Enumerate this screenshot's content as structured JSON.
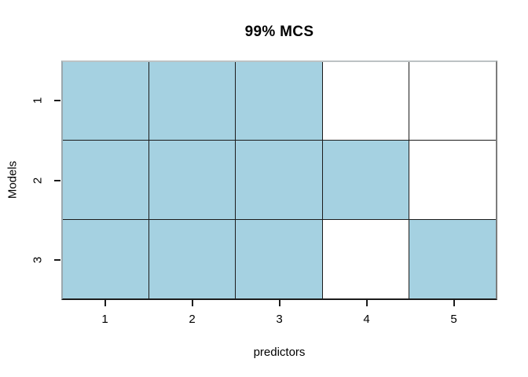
{
  "chart_data": {
    "type": "heatmap",
    "title": "99% MCS",
    "xlabel": "predictors",
    "ylabel": "Models",
    "x_tick_labels": [
      "1",
      "2",
      "3",
      "4",
      "5"
    ],
    "y_tick_labels": [
      "1",
      "2",
      "3"
    ],
    "rows": [
      {
        "model": "1",
        "cells": [
          1,
          1,
          1,
          0,
          0
        ]
      },
      {
        "model": "2",
        "cells": [
          1,
          1,
          1,
          1,
          0
        ]
      },
      {
        "model": "3",
        "cells": [
          1,
          1,
          1,
          0,
          1
        ]
      }
    ],
    "cell_colors": {
      "included": "#a5d1e1",
      "excluded": "#ffffff"
    },
    "grid_line_color": "#1c1c1c",
    "axis_color": "#000000",
    "background": "#ffffff"
  }
}
